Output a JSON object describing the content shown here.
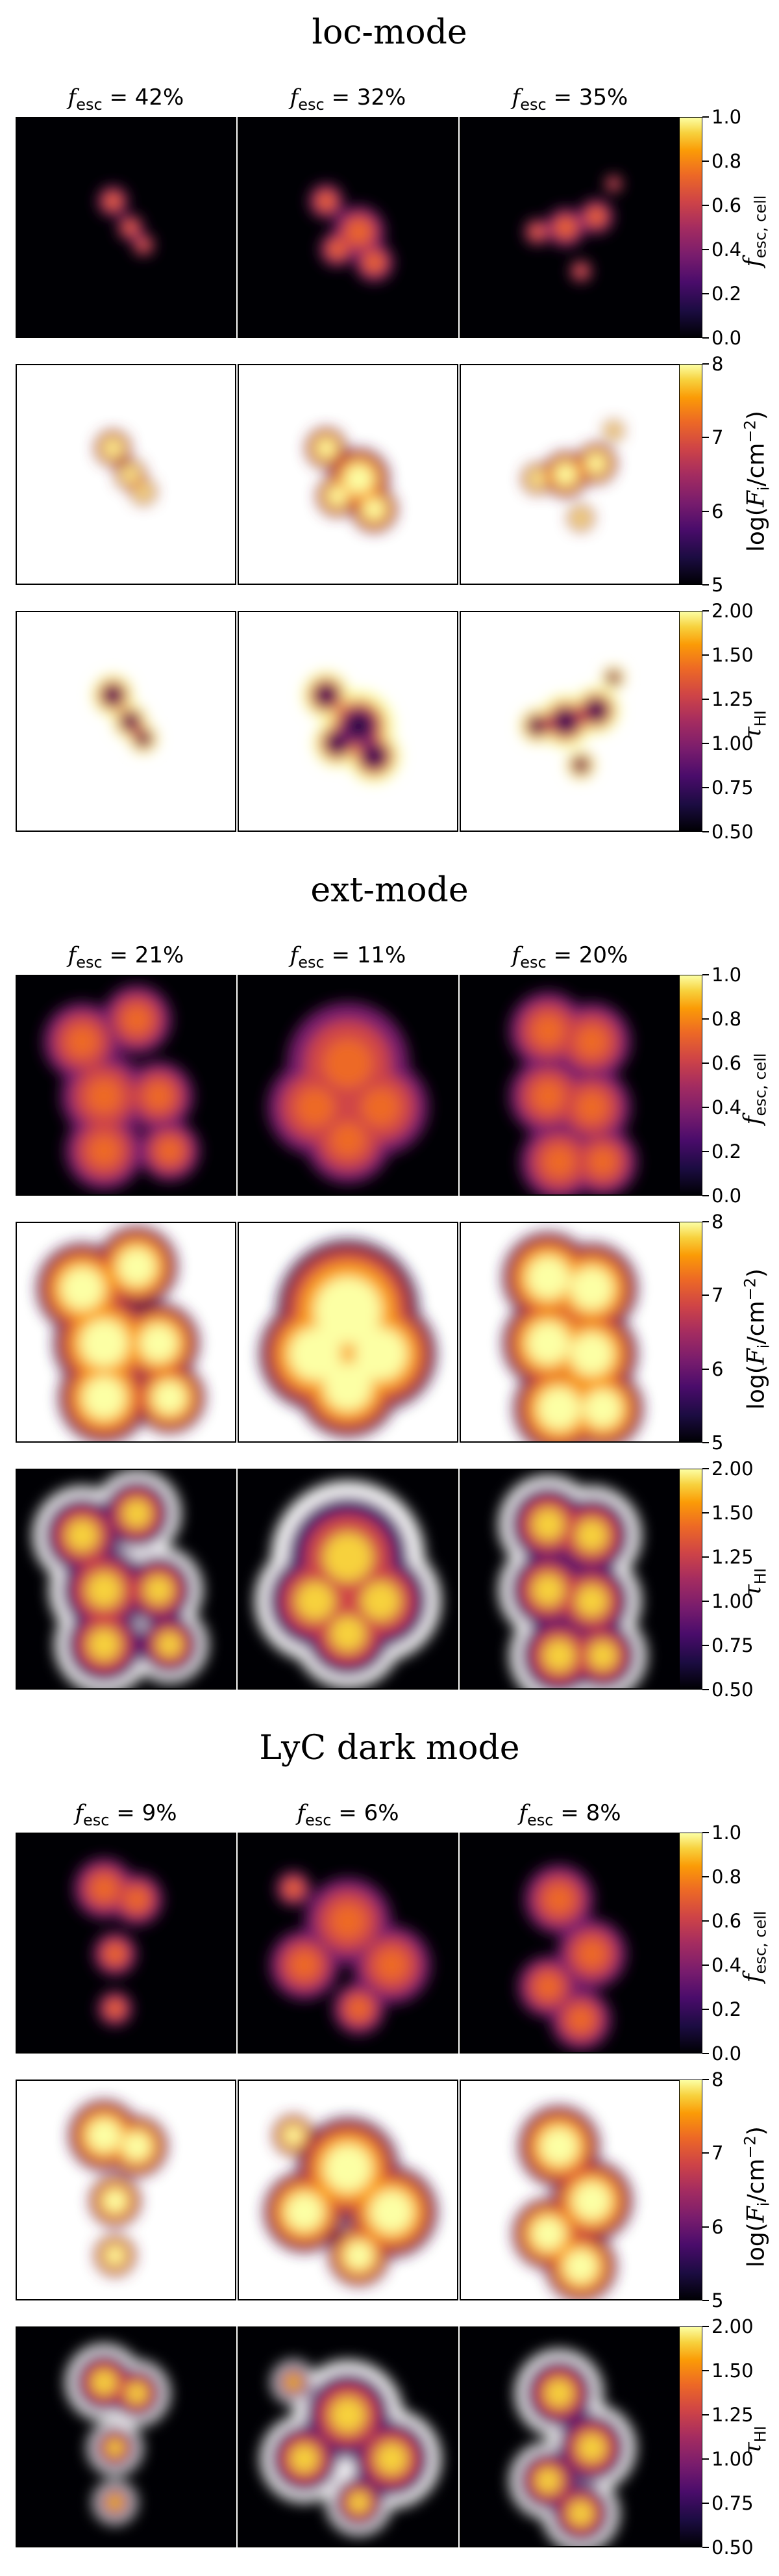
{
  "sections": [
    {
      "title": "loc-mode",
      "fesc": [
        "42%",
        "32%",
        "35%"
      ]
    },
    {
      "title": "ext-mode",
      "fesc": [
        "21%",
        "11%",
        "20%"
      ]
    },
    {
      "title": "LyC dark mode",
      "fesc": [
        "9%",
        "6%",
        "8%"
      ]
    }
  ],
  "fesc_prefix": "f",
  "fesc_sub": "esc",
  "fesc_eq": " = ",
  "colorbars": {
    "fesc_cell": {
      "label_main": "f",
      "label_sub": "esc, cell",
      "ticks": [
        "1.0",
        "0.8",
        "0.6",
        "0.4",
        "0.2",
        "0.0"
      ]
    },
    "flux": {
      "label_pre": "log(",
      "label_main": "F",
      "label_sub": "i",
      "label_post": "/cm",
      "label_sup": "−2",
      "label_end": ")",
      "ticks": [
        "8",
        "7",
        "6",
        "5"
      ]
    },
    "tau": {
      "label_main": "τ",
      "label_sub": "HI",
      "ticks": [
        "2.00",
        "1.50",
        "1.25",
        "1.00",
        "0.75",
        "0.50"
      ]
    }
  },
  "colormap": "inferno",
  "colors": {
    "dark": "#000004",
    "bright": "#fcffa4"
  }
}
